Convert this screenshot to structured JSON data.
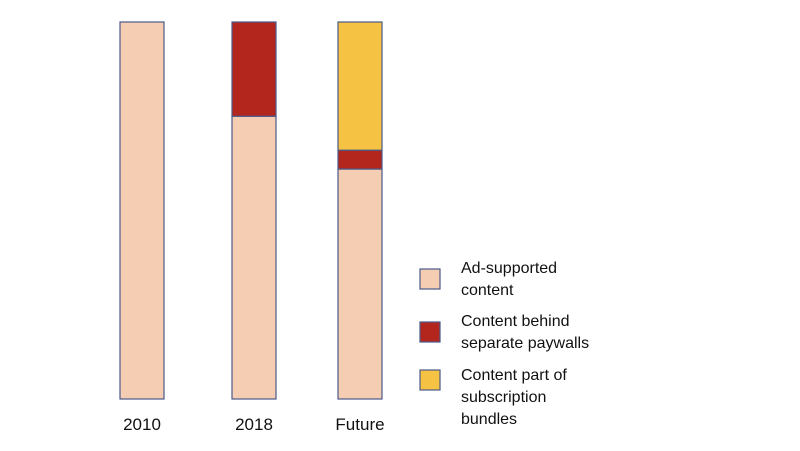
{
  "chart_data": {
    "type": "bar",
    "stacked": true,
    "categories": [
      "2010",
      "2018",
      "Future"
    ],
    "series": [
      {
        "name": "Ad-supported content",
        "legend_lines": [
          "Ad-supported",
          "content"
        ],
        "values": [
          100,
          75,
          61
        ],
        "color": "#f4cdb3"
      },
      {
        "name": "Content behind separate paywalls",
        "legend_lines": [
          "Content behind",
          "separate paywalls"
        ],
        "values": [
          0,
          25,
          5
        ],
        "color": "#b3261e"
      },
      {
        "name": "Content part of subscription bundles",
        "legend_lines": [
          "Content part of",
          "subscription",
          "bundles"
        ],
        "values": [
          0,
          0,
          34
        ],
        "color": "#f6c244"
      }
    ],
    "ylim": [
      0,
      100
    ],
    "title": "",
    "xlabel": "",
    "ylabel": "",
    "grid": false,
    "legend": "right",
    "border_color": "#4a5a8a"
  }
}
